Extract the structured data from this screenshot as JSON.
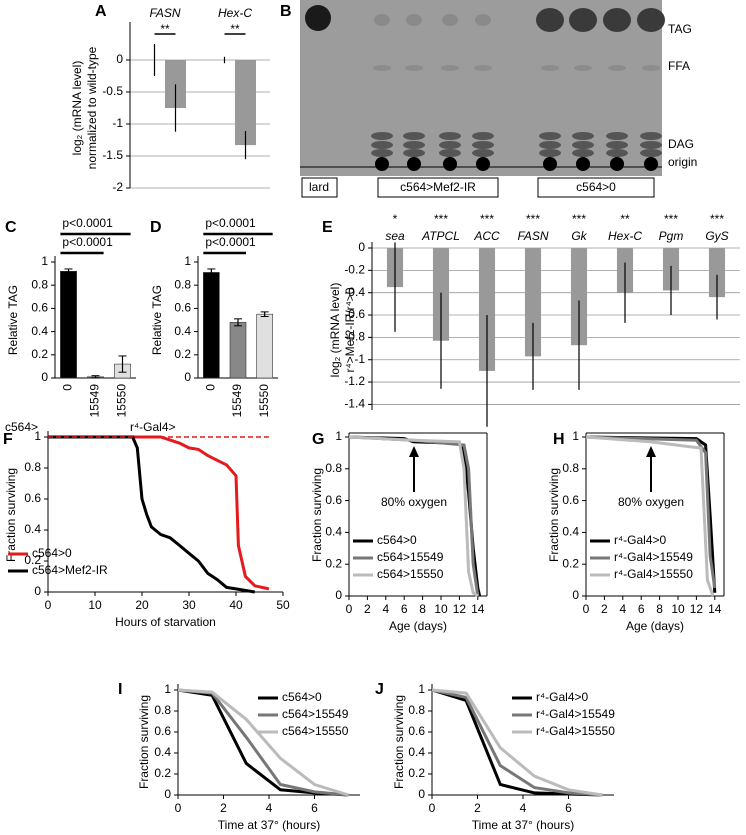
{
  "panel_b": {
    "panel": "B",
    "bands": [
      "TAG",
      "FFA",
      "DAG",
      "origin"
    ],
    "lanes": [
      "lard",
      "c564>Mef2-IR",
      "c564>0"
    ]
  },
  "chart_data": [
    {
      "panel": "A",
      "type": "bar",
      "categories": [
        "FASN",
        "Hex-C"
      ],
      "ylabel": [
        "log₂ (mRNA level)",
        "normalized to wild-type"
      ],
      "series": [
        {
          "color": "#333333",
          "values": [
            0,
            0
          ],
          "errors": [
            0.25,
            0.05
          ]
        },
        {
          "color": "#999999",
          "values": [
            -0.75,
            -1.33
          ],
          "errors": [
            0.37,
            0.22
          ]
        }
      ],
      "annotations": [
        "**",
        "**"
      ],
      "ylim": [
        -2,
        0.5
      ],
      "yticks": [
        0,
        -0.5,
        -1,
        -1.5,
        -2
      ],
      "grid": true
    },
    {
      "panel": "C",
      "type": "bar",
      "categories": [
        "0",
        "15549",
        "15550"
      ],
      "xlabel": "c564>",
      "ylabel": [
        "Relative TAG"
      ],
      "values": [
        0.92,
        0.01,
        0.12
      ],
      "errors": [
        0.02,
        0.01,
        0.07
      ],
      "colors": [
        "#000000",
        "#555555",
        "#e0e0e0"
      ],
      "annotations": [
        "p<0.0001",
        "p<0.0001"
      ],
      "ylim": [
        0,
        1
      ],
      "yticks": [
        0,
        0.2,
        0.4,
        0.6,
        0.8,
        1
      ],
      "grid": false
    },
    {
      "panel": "D",
      "type": "bar",
      "categories": [
        "0",
        "15549",
        "15550"
      ],
      "xlabel": "r⁴-Gal4>",
      "ylabel": [
        "Relative TAG"
      ],
      "values": [
        0.91,
        0.48,
        0.55
      ],
      "errors": [
        0.03,
        0.03,
        0.02
      ],
      "colors": [
        "#000000",
        "#888888",
        "#e0e0e0"
      ],
      "annotations": [
        "p<0.0001",
        "p<0.0001"
      ],
      "ylim": [
        0,
        1
      ],
      "yticks": [
        0,
        0.2,
        0.4,
        0.6,
        0.8,
        1
      ],
      "grid": false
    },
    {
      "panel": "E",
      "type": "bar",
      "categories": [
        "sea",
        "ATPCL",
        "ACC",
        "FASN",
        "Gk",
        "Hex-C",
        "Pgm",
        "GyS"
      ],
      "ylabel": [
        "log₂ (mRNA level)",
        "r⁴>Mef2-IR/r⁴>0"
      ],
      "values": [
        -0.35,
        -0.83,
        -1.1,
        -0.97,
        -0.87,
        -0.4,
        -0.38,
        -0.44
      ],
      "errors": [
        0.4,
        0.43,
        0.5,
        0.3,
        0.4,
        0.27,
        0.22,
        0.2
      ],
      "color": "#999999",
      "annotations": [
        "*",
        "***",
        "***",
        "***",
        "***",
        "**",
        "***",
        "***"
      ],
      "ylim": [
        -1.45,
        0
      ],
      "yticks": [
        0,
        -0.2,
        -0.4,
        -0.6,
        -0.8,
        -1,
        -1.2,
        -1.4
      ],
      "grid": true
    },
    {
      "panel": "F",
      "type": "line",
      "xlabel": "Hours of starvation",
      "ylabel": [
        "Fraction surviving"
      ],
      "legend": "lower left",
      "series": [
        {
          "name": "c564>0",
          "color": "#e41a1c",
          "x": [
            0,
            24,
            26,
            28,
            30,
            32,
            34,
            36,
            38,
            40,
            40.5,
            42,
            44,
            47
          ],
          "values": [
            1,
            1,
            0.98,
            0.96,
            0.93,
            0.92,
            0.88,
            0.85,
            0.82,
            0.75,
            0.3,
            0.1,
            0.04,
            0.02
          ]
        },
        {
          "name": "c564>Mef2-IR",
          "color": "#000000",
          "x": [
            0,
            18,
            19,
            20,
            21,
            22,
            24,
            26,
            28,
            30,
            32,
            34,
            36,
            38,
            40,
            44
          ],
          "values": [
            1,
            1,
            0.93,
            0.6,
            0.5,
            0.42,
            0.37,
            0.35,
            0.3,
            0.25,
            0.2,
            0.12,
            0.08,
            0.03,
            0.02,
            0
          ]
        },
        {
          "color": "#e41a1c",
          "dashed": true,
          "x": [
            0,
            47
          ],
          "values": [
            1,
            1
          ]
        }
      ],
      "xlim": [
        0,
        50
      ],
      "xticks": [
        0,
        10,
        20,
        30,
        40,
        50
      ],
      "ylim": [
        0,
        1
      ],
      "yticks": [
        0,
        0.2,
        0.4,
        0.6,
        0.8,
        1
      ]
    },
    {
      "panel": "G",
      "type": "line",
      "xlabel": "Age (days)",
      "ylabel": [
        "Fraction surviving"
      ],
      "legend": "lower left",
      "annotation": "80% oxygen",
      "series": [
        {
          "name": "c564>0",
          "color": "#000000",
          "x": [
            0,
            6,
            7,
            12,
            12.5,
            13,
            13.5,
            14,
            14.2
          ],
          "values": [
            1,
            0.99,
            0.97,
            0.96,
            0.9,
            0.65,
            0.3,
            0.05,
            0
          ]
        },
        {
          "name": "c564>15549",
          "color": "#777777",
          "x": [
            0,
            7,
            12.5,
            13,
            13.5,
            14
          ],
          "values": [
            1,
            0.98,
            0.95,
            0.8,
            0.2,
            0
          ]
        },
        {
          "name": "c564>15550",
          "color": "#bbbbbb",
          "x": [
            0,
            7,
            12,
            12.5,
            13,
            13.5,
            14
          ],
          "values": [
            1,
            0.98,
            0.97,
            0.8,
            0.15,
            0.02,
            0
          ]
        }
      ],
      "xlim": [
        0,
        15
      ],
      "xticks": [
        0,
        2,
        4,
        6,
        8,
        10,
        12,
        14
      ],
      "ylim": [
        0,
        1
      ],
      "yticks": [
        0,
        0.2,
        0.4,
        0.6,
        0.8,
        1
      ]
    },
    {
      "panel": "H",
      "type": "line",
      "xlabel": "Age (days)",
      "ylabel": [
        "Fraction surviving"
      ],
      "legend": "lower left",
      "annotation": "80% oxygen",
      "series": [
        {
          "name": "r⁴-Gal4>0",
          "color": "#000000",
          "x": [
            0,
            12,
            13,
            13.5,
            14
          ],
          "values": [
            1,
            0.99,
            0.95,
            0.5,
            0.02
          ]
        },
        {
          "name": "r⁴-Gal4>15549",
          "color": "#777777",
          "x": [
            0,
            12,
            13,
            13.5,
            14
          ],
          "values": [
            1,
            0.98,
            0.9,
            0.25,
            0.05
          ]
        },
        {
          "name": "r⁴-Gal4>15550",
          "color": "#bbbbbb",
          "x": [
            0,
            7,
            12.5,
            13.2,
            13.8
          ],
          "values": [
            1,
            0.97,
            0.93,
            0.1,
            0
          ]
        }
      ],
      "xlim": [
        0,
        15
      ],
      "xticks": [
        0,
        2,
        4,
        6,
        8,
        10,
        12,
        14
      ],
      "ylim": [
        0,
        1
      ],
      "yticks": [
        0,
        0.2,
        0.4,
        0.6,
        0.8,
        1
      ]
    },
    {
      "panel": "I",
      "type": "line",
      "xlabel": "Time at 37° (hours)",
      "ylabel": [
        "Fraction surviving"
      ],
      "legend": "upper right",
      "series": [
        {
          "name": "c564>0",
          "color": "#000000",
          "x": [
            0,
            1.5,
            3,
            4.5,
            6,
            7.5
          ],
          "values": [
            1,
            0.95,
            0.3,
            0.05,
            0.02,
            0
          ]
        },
        {
          "name": "c564>15549",
          "color": "#777777",
          "x": [
            0,
            1.5,
            3,
            4.5,
            6,
            7.5
          ],
          "values": [
            1,
            0.97,
            0.55,
            0.1,
            0.03,
            0
          ]
        },
        {
          "name": "c564>15550",
          "color": "#bbbbbb",
          "x": [
            0,
            1.5,
            3,
            4.5,
            6,
            7.5
          ],
          "values": [
            1,
            0.98,
            0.72,
            0.35,
            0.1,
            0
          ]
        }
      ],
      "xlim": [
        0,
        8
      ],
      "xticks": [
        0,
        2,
        4,
        6
      ],
      "ylim": [
        0,
        1
      ],
      "yticks": [
        0,
        0.2,
        0.4,
        0.6,
        0.8,
        1
      ]
    },
    {
      "panel": "J",
      "type": "line",
      "xlabel": "Time at 37° (hours)",
      "ylabel": [
        "Fraction surviving"
      ],
      "legend": "upper right",
      "series": [
        {
          "name": "r⁴-Gal4>0",
          "color": "#000000",
          "x": [
            0,
            1.5,
            3,
            4.5,
            6,
            7.5
          ],
          "values": [
            1,
            0.9,
            0.1,
            0.02,
            0.01,
            0
          ]
        },
        {
          "name": "r⁴-Gal4>15549",
          "color": "#777777",
          "x": [
            0,
            1.5,
            3,
            4.5,
            6,
            7.5
          ],
          "values": [
            1,
            0.93,
            0.28,
            0.07,
            0.02,
            0
          ]
        },
        {
          "name": "r⁴-Gal4>15550",
          "color": "#bbbbbb",
          "x": [
            0,
            1.5,
            3,
            4.5,
            6,
            7.5
          ],
          "values": [
            1,
            0.97,
            0.45,
            0.18,
            0.05,
            0
          ]
        }
      ],
      "xlim": [
        0,
        8
      ],
      "xticks": [
        0,
        2,
        4,
        6
      ],
      "ylim": [
        0,
        1
      ],
      "yticks": [
        0,
        0.2,
        0.4,
        0.6,
        0.8,
        1
      ]
    }
  ]
}
